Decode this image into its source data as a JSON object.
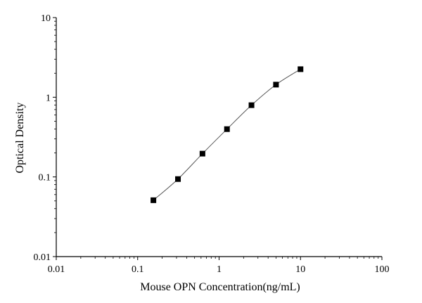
{
  "chart_data": {
    "type": "scatter",
    "title": "",
    "xlabel": "Mouse OPN Concentration(ng/mL)",
    "ylabel": "Optical Density",
    "x_scale": "log",
    "y_scale": "log",
    "xlim": [
      0.01,
      100
    ],
    "ylim": [
      0.01,
      10
    ],
    "x_ticks": [
      0.01,
      0.1,
      1,
      10,
      100
    ],
    "x_tick_labels": [
      "0.01",
      "0.1",
      "1",
      "10",
      "100"
    ],
    "y_ticks": [
      0.01,
      0.1,
      1,
      10
    ],
    "y_tick_labels": [
      "0.01",
      "0.1",
      "1",
      "10"
    ],
    "grid": false,
    "legend": "none",
    "series": [
      {
        "x": [
          0.156,
          0.3125,
          0.625,
          1.25,
          2.5,
          5,
          10
        ],
        "y": [
          0.051,
          0.094,
          0.196,
          0.398,
          0.795,
          1.44,
          2.25
        ],
        "marker": "square",
        "color": "#000000",
        "fit_curve": true,
        "curve_color": "#555555"
      }
    ]
  }
}
